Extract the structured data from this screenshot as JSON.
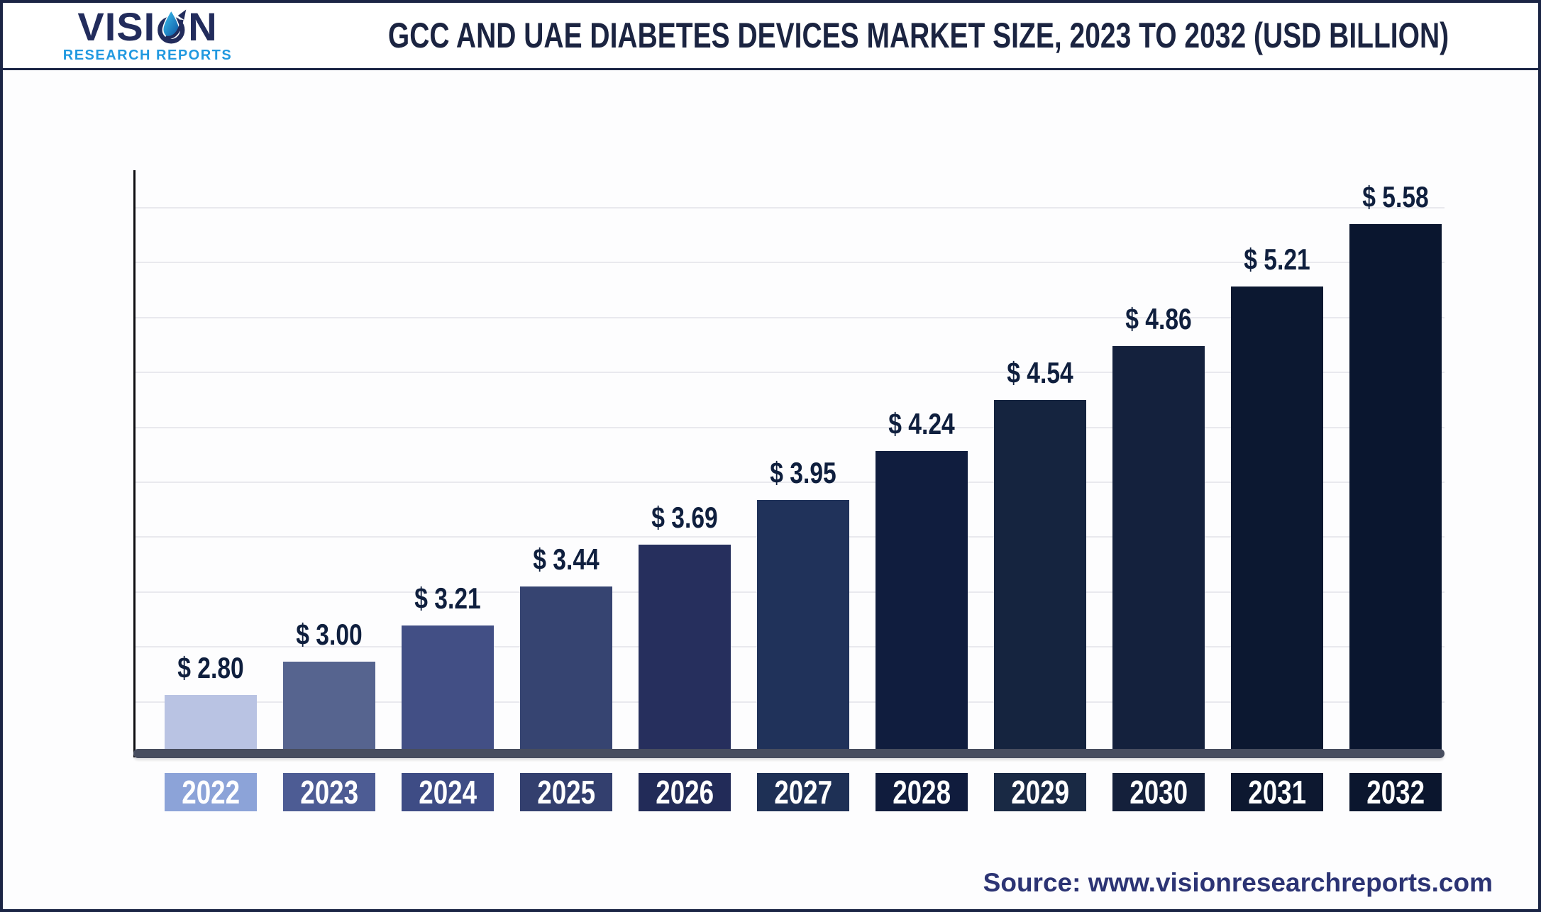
{
  "header": {
    "logo": {
      "brand_prefix": "VISI",
      "brand_suffix": "N",
      "brand_full": "VISION",
      "subtitle": "RESEARCH REPORTS",
      "brand_color": "#222c5c",
      "subtitle_color": "#2199e0"
    },
    "title": "GCC AND UAE DIABETES DEVICES MARKET SIZE, 2023 TO 2032 (USD BILLION)"
  },
  "chart_data": {
    "type": "bar",
    "title": "GCC and UAE Diabetes Devices Market Size, 2023 to 2032 (USD Billion)",
    "unit": "USD Billion",
    "categories": [
      "2022",
      "2023",
      "2024",
      "2025",
      "2026",
      "2027",
      "2028",
      "2029",
      "2030",
      "2031",
      "2032"
    ],
    "values": [
      2.8,
      3.0,
      3.21,
      3.44,
      3.69,
      3.95,
      4.24,
      4.54,
      4.86,
      5.21,
      5.58
    ],
    "value_labels": [
      "$ 2.80",
      "$ 3.00",
      "$ 3.21",
      "$ 3.44",
      "$ 3.69",
      "$ 3.95",
      "$ 4.24",
      "$ 4.54",
      "$ 4.86",
      "$ 5.21",
      "$ 5.58"
    ],
    "bar_colors": [
      "#b9c3e3",
      "#56648f",
      "#424f85",
      "#364471",
      "#262f5d",
      "#20325a",
      "#101d3e",
      "#15243f",
      "#14213d",
      "#0c1831",
      "#0a162f"
    ],
    "category_box_colors": [
      "#8ca3d8",
      "#4d5c94",
      "#3e4c85",
      "#333f6e",
      "#222b58",
      "#1e3055",
      "#101c3d",
      "#192944",
      "#14203b",
      "#0d1830",
      "#0b162e"
    ],
    "xlabel": "",
    "ylabel": "",
    "ylim": [
      2.48,
      5.9
    ],
    "grid": true,
    "legend": "none",
    "gridline_color": "#e9e9ee",
    "axis_line_color": "#0e0e12",
    "baseline_color": "#474d5f",
    "value_label_color": "#0f1f3e",
    "year_label_text_color": "#ffffff"
  },
  "footer": {
    "source": "Source: www.visionresearchreports.com",
    "source_color": "#2c3474"
  }
}
